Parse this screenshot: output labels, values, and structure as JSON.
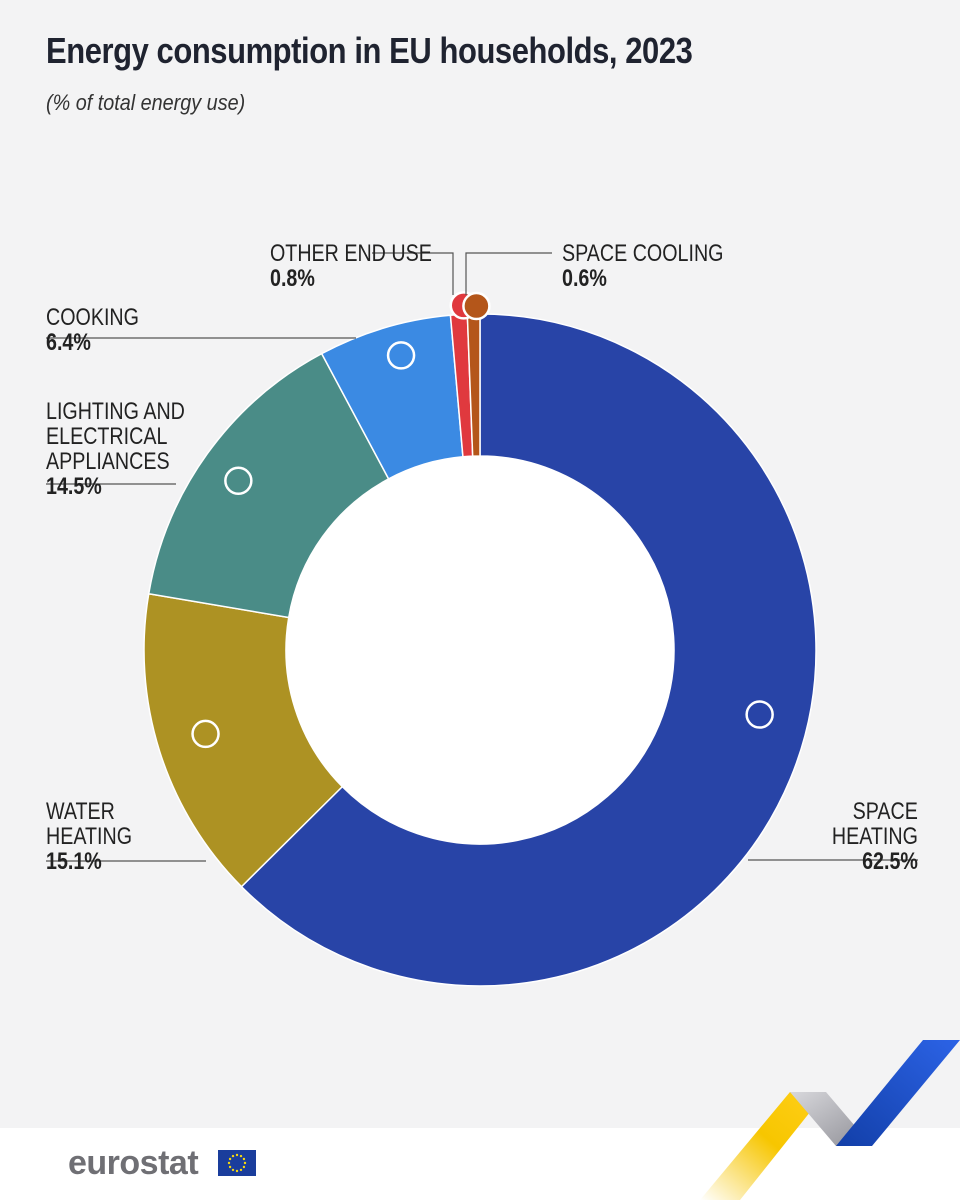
{
  "title": "Energy consumption in EU households, 2023",
  "subtitle": "(% of total energy use)",
  "brand": {
    "name": "eurostat",
    "flag_icon": "eu-flag-icon"
  },
  "chart_data": {
    "type": "pie",
    "donut": true,
    "title": "Energy consumption in EU households, 2023",
    "subtitle": "(% of total energy use)",
    "unit": "%",
    "slices": [
      {
        "key": "space-heating",
        "label": "SPACE\nHEATING",
        "value": 62.5,
        "value_text": "62.5%",
        "color": "#2844a7"
      },
      {
        "key": "water-heating",
        "label": "WATER\nHEATING",
        "value": 15.1,
        "value_text": "15.1%",
        "color": "#ad9223"
      },
      {
        "key": "lighting",
        "label": "LIGHTING AND\nELECTRICAL\nAPPLIANCES",
        "value": 14.5,
        "value_text": "14.5%",
        "color": "#4a8c87"
      },
      {
        "key": "cooking",
        "label": "COOKING",
        "value": 6.4,
        "value_text": "6.4%",
        "color": "#3b8ae3"
      },
      {
        "key": "other-end-use",
        "label": "OTHER END USE",
        "value": 0.8,
        "value_text": "0.8%",
        "color": "#e0393e"
      },
      {
        "key": "space-cooling",
        "label": "SPACE COOLING",
        "value": 0.6,
        "value_text": "0.6%",
        "color": "#b4561a"
      }
    ]
  }
}
